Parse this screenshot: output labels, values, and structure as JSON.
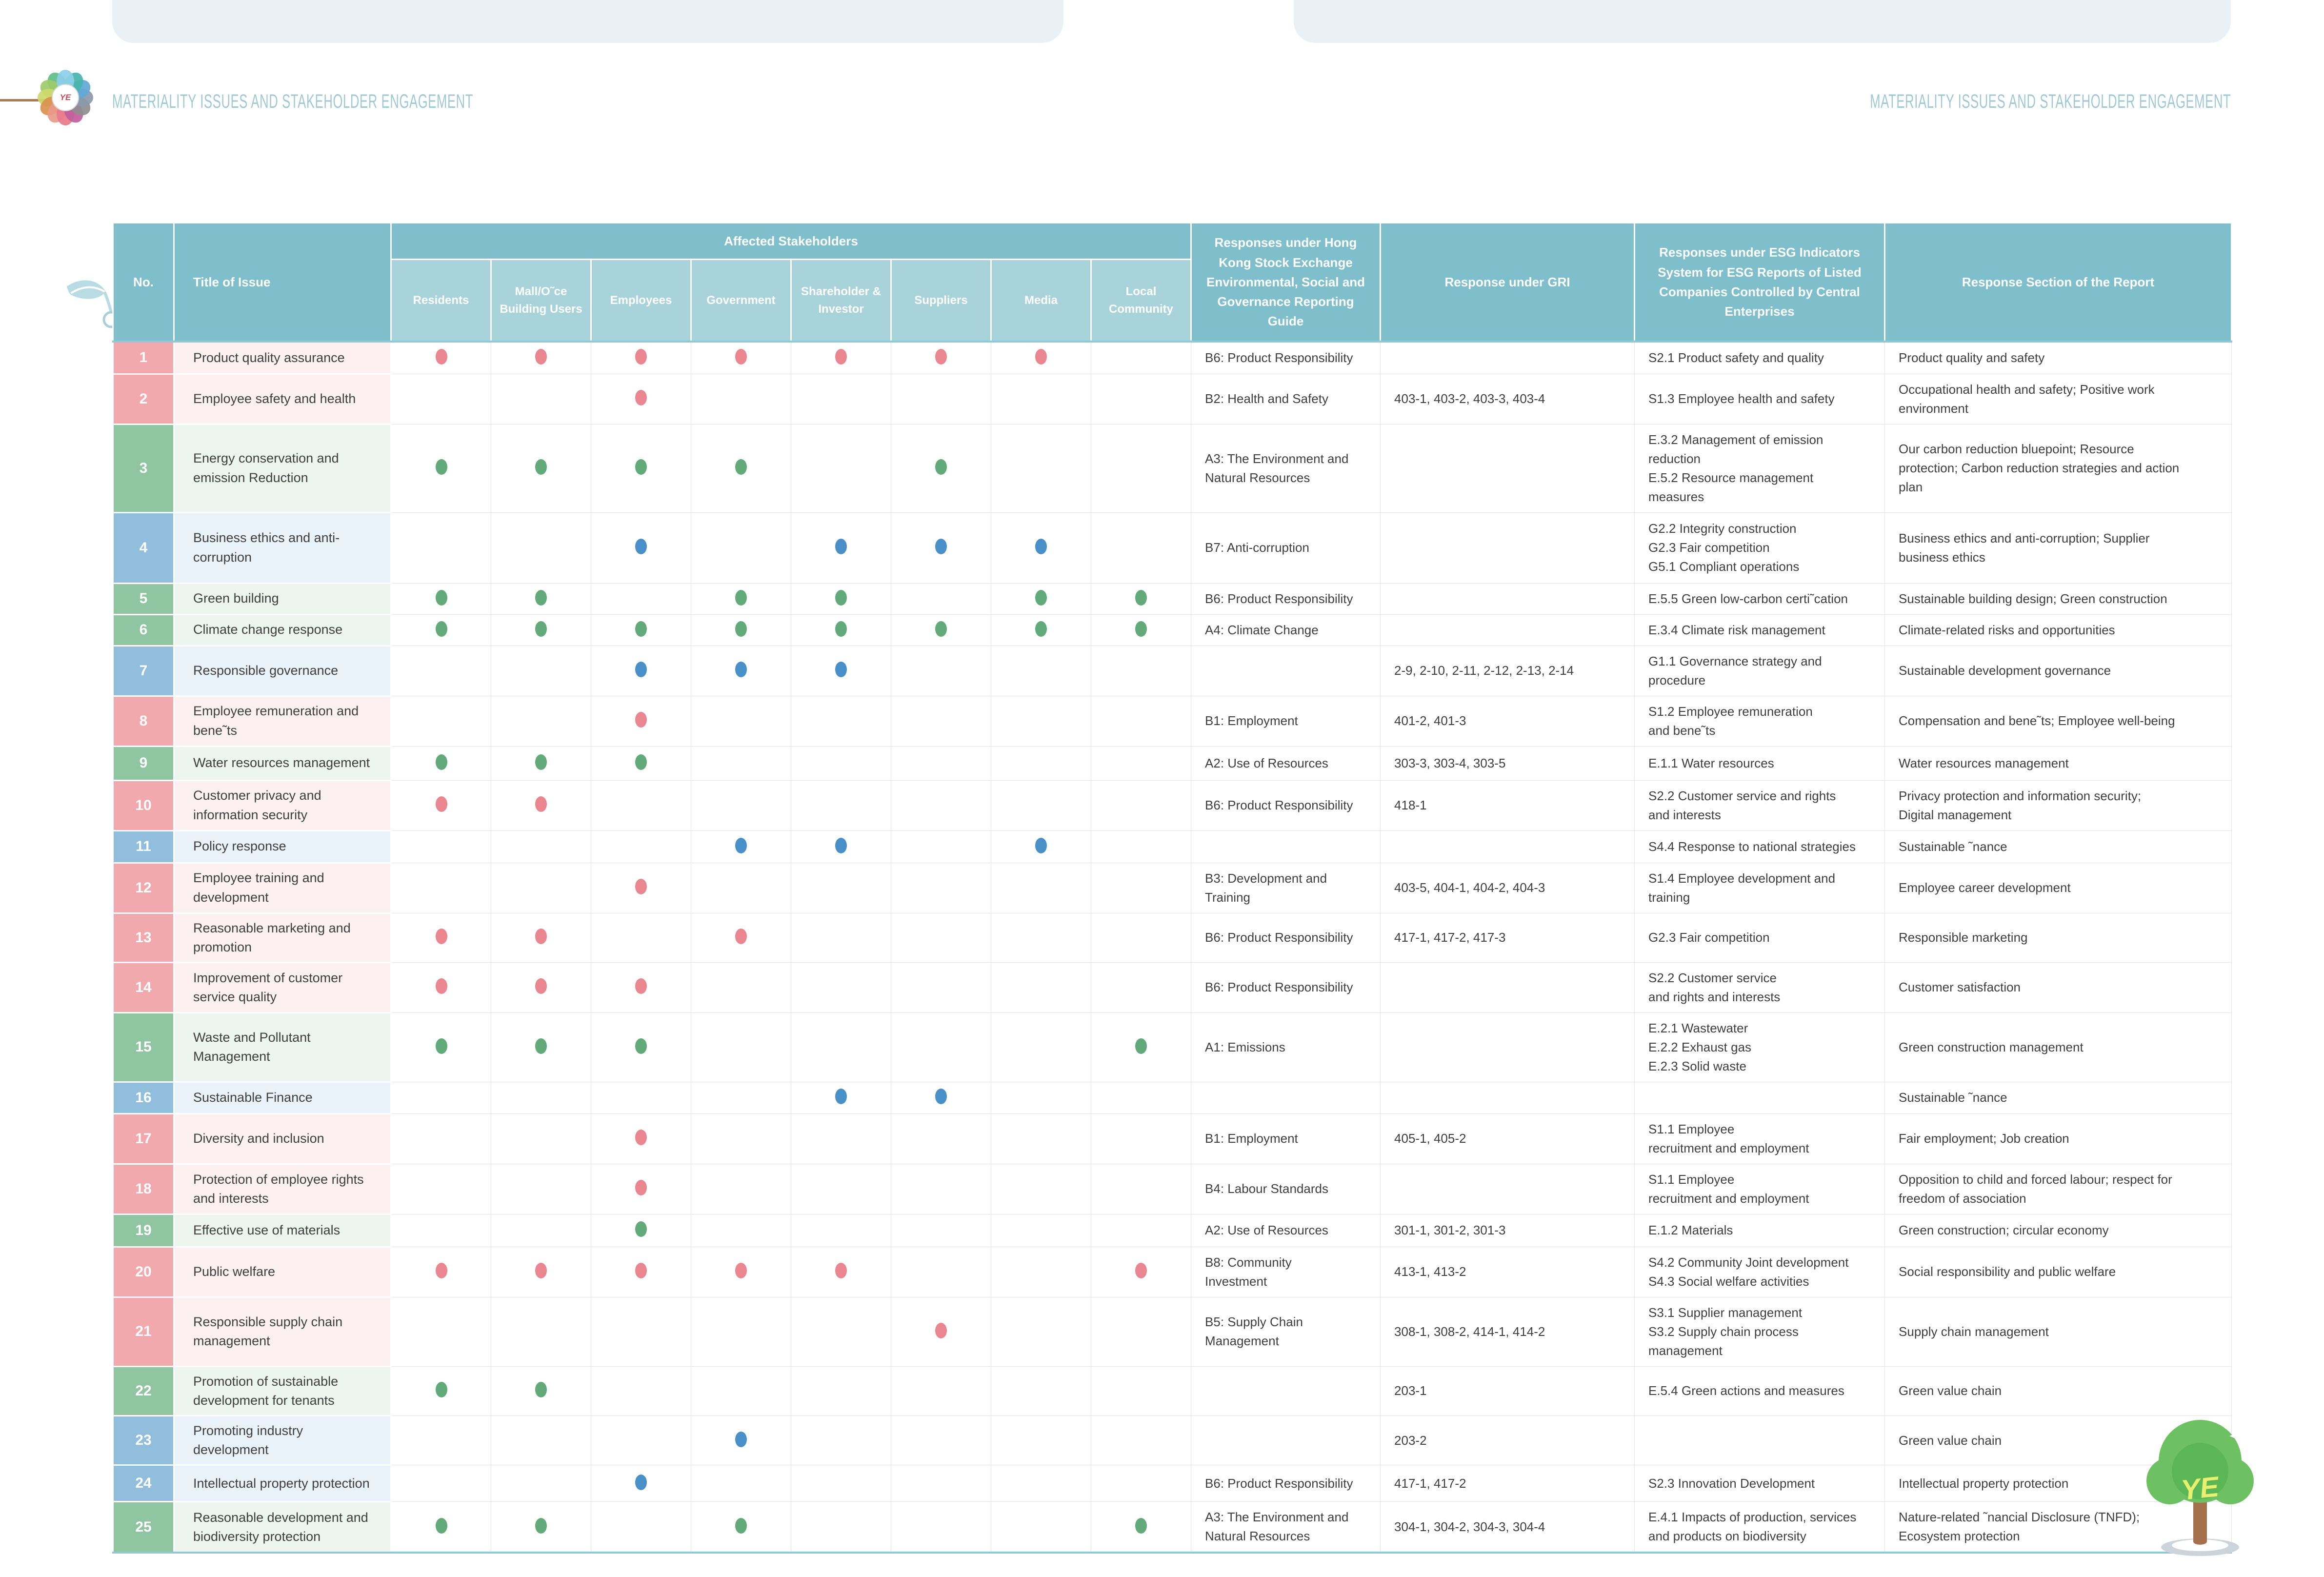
{
  "page_titles": {
    "left": "MATERIALITY ISSUES AND STAKEHOLDER ENGAGEMENT",
    "right": "MATERIALITY ISSUES AND STAKEHOLDER ENGAGEMENT"
  },
  "logo": {
    "monogram": "YE",
    "petal_colors": [
      "#8ccfe8",
      "#49b3ae",
      "#5fa8d8",
      "#8a99ab",
      "#8e8e8e",
      "#c05d9a",
      "#e8798c",
      "#e89a8a",
      "#d9914e",
      "#cdd96e",
      "#9ccb6a",
      "#5fbd8a"
    ]
  },
  "tree": {
    "monogram": "YE"
  },
  "colors": {
    "header_teal": "#7fbecb",
    "subheader_teal": "#a9d3db",
    "rule_teal": "#8ec9d4",
    "social": "#f2a9ae",
    "social_tint": "#fdf0f0",
    "social_dot": "#e9868f",
    "environment": "#90c5a1",
    "environment_tint": "#ecf5ee",
    "environment_dot": "#63aa7a",
    "governance": "#92bedd",
    "governance_tint": "#e9f1f9",
    "governance_dot": "#4a90c8",
    "page_title_text": "#9fc8d6",
    "top_strip": "#e9f0f6"
  },
  "table": {
    "headers": {
      "no": "No.",
      "title": "Title of Issue",
      "stakeholders_group": "Affected Stakeholders",
      "stakeholders": [
        "Residents",
        "Mall/O˜ce Building Users",
        "Employees",
        "Government",
        "Shareholder & Investor",
        "Suppliers",
        "Media",
        "Local Community"
      ],
      "hkex": "Responses under Hong Kong Stock Exchange Environmental, Social and Governance Reporting Guide",
      "gri": "Response under GRI",
      "esg": "Responses under ESG Indicators System for ESG Reports of Listed Companies Controlled by Central Enterprises",
      "section": "Response Section of the Report"
    },
    "rows": [
      {
        "no": "1",
        "category": "social",
        "title": "Product quality assurance",
        "dots": [
          1,
          1,
          1,
          1,
          1,
          1,
          1,
          0
        ],
        "hkex": "B6: Product Responsibility",
        "gri": "",
        "esg": "S2.1 Product safety and quality",
        "section": "Product quality and safety"
      },
      {
        "no": "2",
        "category": "social",
        "title": "Employee safety and health",
        "dots": [
          0,
          0,
          1,
          0,
          0,
          0,
          0,
          0
        ],
        "hkex": "B2: Health and Safety",
        "gri": "403-1, 403-2, 403-3, 403-4",
        "esg": "S1.3 Employee health and safety",
        "section": "Occupational health and safety; Positive work\nenvironment"
      },
      {
        "no": "3",
        "category": "environment",
        "title": "Energy conservation and emission Reduction",
        "dots": [
          1,
          1,
          1,
          1,
          0,
          1,
          0,
          0
        ],
        "hkex": "A3: The Environment and\nNatural Resources",
        "gri": "",
        "esg": "E.3.2 Management of emission\nreduction\nE.5.2 Resource management\nmeasures",
        "section": "Our carbon reduction bluepoint; Resource\nprotection; Carbon reduction strategies and action\nplan"
      },
      {
        "no": "4",
        "category": "governance",
        "title": "Business ethics and anti-corruption",
        "dots": [
          0,
          0,
          1,
          0,
          1,
          1,
          1,
          0
        ],
        "hkex": "B7: Anti-corruption",
        "gri": "",
        "esg": "G2.2 Integrity construction\nG2.3 Fair competition\nG5.1 Compliant operations",
        "section": "Business ethics and anti-corruption; Supplier\nbusiness ethics"
      },
      {
        "no": "5",
        "category": "environment",
        "title": "Green building",
        "dots": [
          1,
          1,
          0,
          1,
          1,
          0,
          1,
          1
        ],
        "hkex": "B6: Product Responsibility",
        "gri": "",
        "esg": "E.5.5 Green low-carbon certi˜cation",
        "section": "Sustainable building design; Green construction"
      },
      {
        "no": "6",
        "category": "environment",
        "title": "Climate change response",
        "dots": [
          1,
          1,
          1,
          1,
          1,
          1,
          1,
          1
        ],
        "hkex": "A4: Climate Change",
        "gri": "",
        "esg": "E.3.4 Climate risk management",
        "section": "Climate-related risks and opportunities"
      },
      {
        "no": "7",
        "category": "governance",
        "title": "Responsible governance",
        "dots": [
          0,
          0,
          1,
          1,
          1,
          0,
          0,
          0
        ],
        "hkex": "",
        "gri": "2-9, 2-10, 2-11, 2-12, 2-13, 2-14",
        "esg": "G1.1 Governance strategy and\nprocedure",
        "section": "Sustainable development governance"
      },
      {
        "no": "8",
        "category": "social",
        "title": "Employee remuneration and bene˜ts",
        "dots": [
          0,
          0,
          1,
          0,
          0,
          0,
          0,
          0
        ],
        "hkex": "B1: Employment",
        "gri": "401-2, 401-3",
        "esg": "S1.2 Employee remuneration\nand bene˜ts",
        "section": "Compensation and bene˜ts; Employee well-being"
      },
      {
        "no": "9",
        "category": "environment",
        "title": "Water resources management",
        "dots": [
          1,
          1,
          1,
          0,
          0,
          0,
          0,
          0
        ],
        "hkex": "A2: Use of Resources",
        "gri": "303-3, 303-4, 303-5",
        "esg": "E.1.1 Water resources",
        "section": "Water resources management"
      },
      {
        "no": "10",
        "category": "social",
        "title": "Customer privacy and information security",
        "dots": [
          1,
          1,
          0,
          0,
          0,
          0,
          0,
          0
        ],
        "hkex": "B6: Product Responsibility",
        "gri": "418-1",
        "esg": "S2.2 Customer service and rights\nand interests",
        "section": "Privacy protection and information security;\nDigital management"
      },
      {
        "no": "11",
        "category": "governance",
        "title": "Policy response",
        "dots": [
          0,
          0,
          0,
          1,
          1,
          0,
          1,
          0
        ],
        "hkex": "",
        "gri": "",
        "esg": "S4.4 Response to national strategies",
        "section": "Sustainable ˜nance"
      },
      {
        "no": "12",
        "category": "social",
        "title": "Employee training and development",
        "dots": [
          0,
          0,
          1,
          0,
          0,
          0,
          0,
          0
        ],
        "hkex": "B3: Development and\nTraining",
        "gri": "403-5, 404-1, 404-2, 404-3",
        "esg": "S1.4 Employee development and\ntraining",
        "section": "Employee career development"
      },
      {
        "no": "13",
        "category": "social",
        "title": "Reasonable marketing and promotion",
        "dots": [
          1,
          1,
          0,
          1,
          0,
          0,
          0,
          0
        ],
        "hkex": "B6: Product Responsibility",
        "gri": "417-1, 417-2, 417-3",
        "esg": "G2.3 Fair competition",
        "section": "Responsible marketing"
      },
      {
        "no": "14",
        "category": "social",
        "title": "Improvement of customer service quality",
        "dots": [
          1,
          1,
          1,
          0,
          0,
          0,
          0,
          0
        ],
        "hkex": "B6: Product Responsibility",
        "gri": "",
        "esg": "S2.2 Customer service\nand rights and interests",
        "section": "Customer satisfaction"
      },
      {
        "no": "15",
        "category": "environment",
        "title": "Waste and Pollutant Management",
        "dots": [
          1,
          1,
          1,
          0,
          0,
          0,
          0,
          1
        ],
        "hkex": "A1: Emissions",
        "gri": "",
        "esg": "E.2.1 Wastewater\nE.2.2 Exhaust gas\nE.2.3 Solid waste",
        "section": "Green construction management"
      },
      {
        "no": "16",
        "category": "governance",
        "title": "Sustainable Finance",
        "dots": [
          0,
          0,
          0,
          0,
          1,
          1,
          0,
          0
        ],
        "hkex": "",
        "gri": "",
        "esg": "",
        "section": "Sustainable ˜nance"
      },
      {
        "no": "17",
        "category": "social",
        "title": "Diversity and inclusion",
        "dots": [
          0,
          0,
          1,
          0,
          0,
          0,
          0,
          0
        ],
        "hkex": "B1: Employment",
        "gri": "405-1, 405-2",
        "esg": "S1.1 Employee\nrecruitment and employment",
        "section": "Fair employment; Job creation"
      },
      {
        "no": "18",
        "category": "social",
        "title": "Protection of employee rights and interests",
        "dots": [
          0,
          0,
          1,
          0,
          0,
          0,
          0,
          0
        ],
        "hkex": "B4: Labour Standards",
        "gri": "",
        "esg": "S1.1 Employee\nrecruitment and employment",
        "section": "Opposition to child and forced labour; respect for\nfreedom of association"
      },
      {
        "no": "19",
        "category": "environment",
        "title": "Effective use of materials",
        "dots": [
          0,
          0,
          1,
          0,
          0,
          0,
          0,
          0
        ],
        "hkex": "A2: Use of Resources",
        "gri": "301-1, 301-2, 301-3",
        "esg": "E.1.2 Materials",
        "section": "Green construction; circular economy"
      },
      {
        "no": "20",
        "category": "social",
        "title": "Public welfare",
        "dots": [
          1,
          1,
          1,
          1,
          1,
          0,
          0,
          1
        ],
        "hkex": "B8: Community\nInvestment",
        "gri": "413-1, 413-2",
        "esg": "S4.2 Community Joint development\nS4.3 Social welfare activities",
        "section": "Social responsibility and public welfare"
      },
      {
        "no": "21",
        "category": "social",
        "title": "Responsible supply chain management",
        "dots": [
          0,
          0,
          0,
          0,
          0,
          1,
          0,
          0
        ],
        "hkex": "B5: Supply Chain\nManagement",
        "gri": "308-1, 308-2, 414-1, 414-2",
        "esg": "S3.1 Supplier management\nS3.2 Supply chain process\nmanagement",
        "section": "Supply chain management"
      },
      {
        "no": "22",
        "category": "environment",
        "title": "Promotion of sustainable development for tenants",
        "dots": [
          1,
          1,
          0,
          0,
          0,
          0,
          0,
          0
        ],
        "hkex": "",
        "gri": "203-1",
        "esg": "E.5.4 Green actions and measures",
        "section": "Green value chain"
      },
      {
        "no": "23",
        "category": "governance",
        "title": "Promoting industry development",
        "dots": [
          0,
          0,
          0,
          1,
          0,
          0,
          0,
          0
        ],
        "hkex": "",
        "gri": "203-2",
        "esg": "",
        "section": "Green value chain"
      },
      {
        "no": "24",
        "category": "governance",
        "title": "Intellectual property protection",
        "dots": [
          0,
          0,
          1,
          0,
          0,
          0,
          0,
          0
        ],
        "hkex": "B6: Product Responsibility",
        "gri": "417-1, 417-2",
        "esg": "S2.3 Innovation Development",
        "section": "Intellectual property protection"
      },
      {
        "no": "25",
        "category": "environment",
        "title": "Reasonable development and biodiversity protection",
        "dots": [
          1,
          1,
          0,
          1,
          0,
          0,
          0,
          1
        ],
        "hkex": "A3: The Environment and\nNatural Resources",
        "gri": "304-1, 304-2, 304-3, 304-4",
        "esg": "E.4.1 Impacts of production, services\nand products on biodiversity",
        "section": "Nature-related ˜nancial Disclosure (TNFD);\nEcosystem protection"
      }
    ]
  }
}
